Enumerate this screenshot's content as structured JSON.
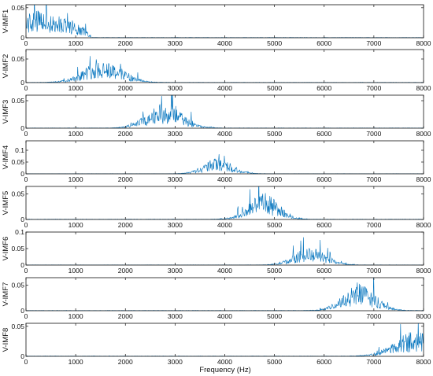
{
  "chart_data": {
    "type": "line",
    "xlabel": "Frequency (Hz)",
    "xlim": [
      0,
      8000
    ],
    "xticks": [
      0,
      1000,
      2000,
      3000,
      4000,
      5000,
      6000,
      7000,
      8000
    ],
    "line_color": "#0072BD",
    "panels": [
      {
        "ylabel": "V-IMF1",
        "ylim": [
          0,
          0.055
        ],
        "yticks": [
          0,
          0.05
        ],
        "center": 250,
        "sigma": 420,
        "peak": 0.03,
        "cutoff": 1300
      },
      {
        "ylabel": "V-IMF2",
        "ylim": [
          0,
          0.07
        ],
        "yticks": [
          0,
          0.05
        ],
        "center": 1550,
        "sigma": 380,
        "peak": 0.032
      },
      {
        "ylabel": "V-IMF3",
        "ylim": [
          0,
          0.06
        ],
        "yticks": [
          0,
          0.05
        ],
        "center": 2780,
        "sigma": 350,
        "peak": 0.03
      },
      {
        "ylabel": "V-IMF4",
        "ylim": [
          0,
          0.14
        ],
        "yticks": [
          0,
          0.05,
          0.1
        ],
        "center": 3870,
        "sigma": 280,
        "peak": 0.045
      },
      {
        "ylabel": "V-IMF5",
        "ylim": [
          0,
          0.065
        ],
        "yticks": [
          0,
          0.05
        ],
        "center": 4780,
        "sigma": 300,
        "peak": 0.035
      },
      {
        "ylabel": "V-IMF6",
        "ylim": [
          0,
          0.1
        ],
        "yticks": [
          0,
          0.05,
          0.1
        ],
        "center": 5720,
        "sigma": 320,
        "peak": 0.035
      },
      {
        "ylabel": "V-IMF7",
        "ylim": [
          0,
          0.065
        ],
        "yticks": [
          0,
          0.05
        ],
        "center": 6700,
        "sigma": 320,
        "peak": 0.035
      },
      {
        "ylabel": "V-IMF8",
        "ylim": [
          0,
          0.055
        ],
        "yticks": [
          0,
          0.05
        ],
        "center": 7850,
        "sigma": 420,
        "peak": 0.028
      }
    ]
  }
}
